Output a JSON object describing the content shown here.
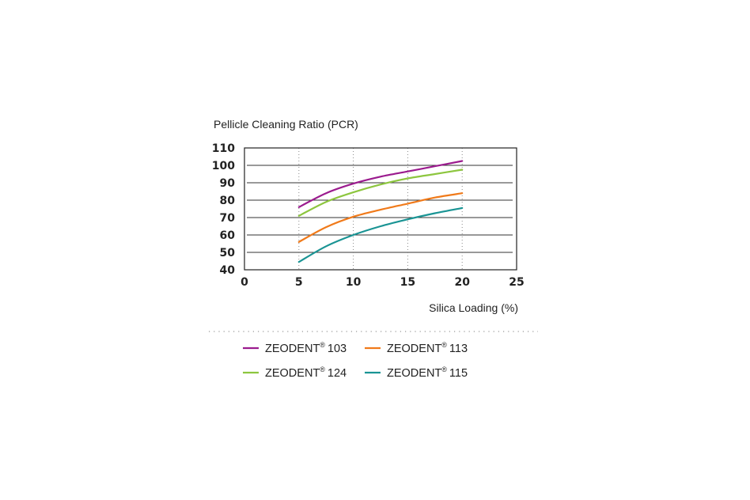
{
  "chart_data": {
    "type": "line",
    "ylabel": "Pellicle Cleaning Ratio (PCR)",
    "xlabel": "Silica Loading (%)",
    "xlim": [
      0,
      25
    ],
    "ylim": [
      40,
      110
    ],
    "x_ticks": [
      "0",
      "5",
      "10",
      "15",
      "20",
      "25"
    ],
    "y_ticks": [
      "40",
      "50",
      "60",
      "70",
      "80",
      "90",
      "100",
      "110"
    ],
    "grid": "horizontal solid lines, vertical dotted lines",
    "legend_position": "bottom",
    "series": [
      {
        "name": "ZEODENT® 103",
        "color": "#9b1b8e",
        "x": [
          5,
          7.5,
          10,
          12.5,
          15,
          17.5,
          20
        ],
        "y": [
          76,
          84,
          89.5,
          93.5,
          96.5,
          99.5,
          102.5
        ]
      },
      {
        "name": "ZEODENT® 124",
        "color": "#8dc63f",
        "x": [
          5,
          7.5,
          10,
          12.5,
          15,
          17.5,
          20
        ],
        "y": [
          71,
          79,
          84.5,
          89,
          92.5,
          95,
          97.5
        ]
      },
      {
        "name": "ZEODENT® 113",
        "color": "#f07a1a",
        "x": [
          5,
          7.5,
          10,
          12.5,
          15,
          17.5,
          20
        ],
        "y": [
          56,
          64.5,
          70.5,
          74.5,
          78,
          81.5,
          84
        ]
      },
      {
        "name": "ZEODENT® 115",
        "color": "#1a9494",
        "x": [
          5,
          7.5,
          10,
          12.5,
          15,
          17.5,
          20
        ],
        "y": [
          44.5,
          53.5,
          60,
          65,
          69,
          72.5,
          75.5
        ]
      }
    ]
  },
  "legend": [
    {
      "name": "ZEODENT",
      "mark": "®",
      "num": "103",
      "color": "#9b1b8e"
    },
    {
      "name": "ZEODENT",
      "mark": "®",
      "num": "113",
      "color": "#f07a1a"
    },
    {
      "name": "ZEODENT",
      "mark": "®",
      "num": "124",
      "color": "#8dc63f"
    },
    {
      "name": "ZEODENT",
      "mark": "®",
      "num": "115",
      "color": "#1a9494"
    }
  ]
}
